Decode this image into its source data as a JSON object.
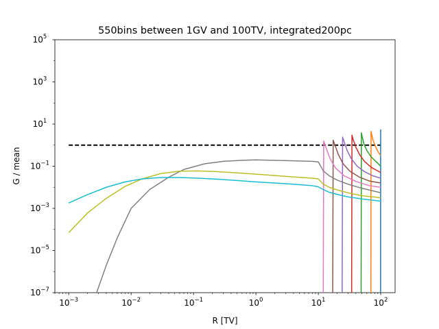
{
  "chart_data": {
    "type": "line",
    "title": "550bins between 1GV and 100TV, integrated200pc",
    "xlabel": "R [TV]",
    "ylabel": "G / mean",
    "xscale": "log",
    "yscale": "log",
    "xlim": [
      0.0006,
      170
    ],
    "ylim": [
      1e-07,
      100000
    ],
    "x_ticks": [
      {
        "value": 0.001,
        "base": "10",
        "exp": "−3"
      },
      {
        "value": 0.01,
        "base": "10",
        "exp": "−2"
      },
      {
        "value": 0.1,
        "base": "10",
        "exp": "−1"
      },
      {
        "value": 1,
        "base": "10",
        "exp": "0"
      },
      {
        "value": 10,
        "base": "10",
        "exp": "1"
      },
      {
        "value": 100,
        "base": "10",
        "exp": "2"
      }
    ],
    "y_ticks": [
      {
        "value": 1e-07,
        "base": "10",
        "exp": "−7"
      },
      {
        "value": 1e-05,
        "base": "10",
        "exp": "−5"
      },
      {
        "value": 0.001,
        "base": "10",
        "exp": "−3"
      },
      {
        "value": 0.1,
        "base": "10",
        "exp": "−1"
      },
      {
        "value": 10,
        "base": "10",
        "exp": "1"
      },
      {
        "value": 1000,
        "base": "10",
        "exp": "3"
      },
      {
        "value": 100000,
        "base": "10",
        "exp": "5"
      }
    ],
    "grid": false,
    "reference_line": {
      "y": 1,
      "x": [
        0.001,
        100
      ],
      "color": "#000000",
      "style": "dashed"
    },
    "series": [
      {
        "color": "#1f77b4",
        "x": [
          99.5,
          99.7,
          100
        ],
        "y": [
          1e-07,
          5.0,
          5.5
        ]
      },
      {
        "color": "#ff7f0e",
        "x": [
          69.5,
          70,
          72,
          76,
          82,
          90,
          100
        ],
        "y": [
          1e-07,
          4.5,
          3.0,
          1.6,
          0.9,
          0.5,
          0.32
        ]
      },
      {
        "color": "#2ca02c",
        "x": [
          48.5,
          49,
          50.5,
          54,
          60,
          70,
          85,
          100
        ],
        "y": [
          1e-07,
          3.8,
          2.5,
          1.1,
          0.55,
          0.28,
          0.16,
          0.1
        ]
      },
      {
        "color": "#d62728",
        "x": [
          34.2,
          34.6,
          36,
          40,
          46,
          55,
          70,
          85,
          100
        ],
        "y": [
          1e-07,
          3.0,
          1.9,
          0.8,
          0.35,
          0.17,
          0.09,
          0.065,
          0.05
        ]
      },
      {
        "color": "#9467bd",
        "x": [
          24.1,
          24.5,
          26,
          29,
          34,
          42,
          55,
          75,
          100
        ],
        "y": [
          1e-07,
          2.4,
          1.4,
          0.55,
          0.22,
          0.1,
          0.055,
          0.035,
          0.027
        ]
      },
      {
        "color": "#8c564b",
        "x": [
          17.0,
          17.3,
          18.5,
          21,
          25,
          32,
          45,
          65,
          100
        ],
        "y": [
          1e-07,
          1.7,
          1.0,
          0.35,
          0.13,
          0.058,
          0.031,
          0.02,
          0.016
        ]
      },
      {
        "color": "#e377c2",
        "x": [
          12.0,
          12.2,
          13.2,
          15.5,
          19,
          26,
          40,
          65,
          100
        ],
        "y": [
          1e-07,
          1.6,
          0.8,
          0.22,
          0.08,
          0.035,
          0.019,
          0.012,
          0.01
        ]
      },
      {
        "color": "#7f7f7f",
        "x": [
          0.0028,
          0.004,
          0.006,
          0.01,
          0.02,
          0.04,
          0.07,
          0.15,
          0.3,
          0.6,
          1,
          2,
          4,
          8,
          10,
          12,
          15,
          20,
          30,
          50,
          100
        ],
        "y": [
          1e-07,
          2e-06,
          4e-05,
          0.001,
          0.008,
          0.03,
          0.07,
          0.13,
          0.17,
          0.19,
          0.2,
          0.19,
          0.18,
          0.17,
          0.16,
          0.06,
          0.035,
          0.022,
          0.014,
          0.009,
          0.0055
        ]
      },
      {
        "color": "#bcbd22",
        "x": [
          0.001,
          0.002,
          0.004,
          0.008,
          0.015,
          0.03,
          0.06,
          0.12,
          0.25,
          0.5,
          1,
          2,
          4,
          8,
          10,
          12,
          15,
          20,
          30,
          50,
          100
        ],
        "y": [
          7e-05,
          0.0006,
          0.003,
          0.011,
          0.025,
          0.045,
          0.058,
          0.06,
          0.055,
          0.048,
          0.042,
          0.036,
          0.031,
          0.027,
          0.025,
          0.014,
          0.01,
          0.0075,
          0.0055,
          0.004,
          0.0032
        ]
      },
      {
        "color": "#17becf",
        "x": [
          0.001,
          0.002,
          0.004,
          0.008,
          0.015,
          0.03,
          0.06,
          0.12,
          0.25,
          0.5,
          1,
          2,
          4,
          8,
          10,
          12,
          15,
          20,
          30,
          50,
          100
        ],
        "y": [
          0.0018,
          0.0045,
          0.01,
          0.018,
          0.025,
          0.029,
          0.029,
          0.027,
          0.024,
          0.021,
          0.018,
          0.016,
          0.014,
          0.012,
          0.0105,
          0.0078,
          0.0058,
          0.0046,
          0.0035,
          0.0028,
          0.0022
        ]
      }
    ]
  }
}
